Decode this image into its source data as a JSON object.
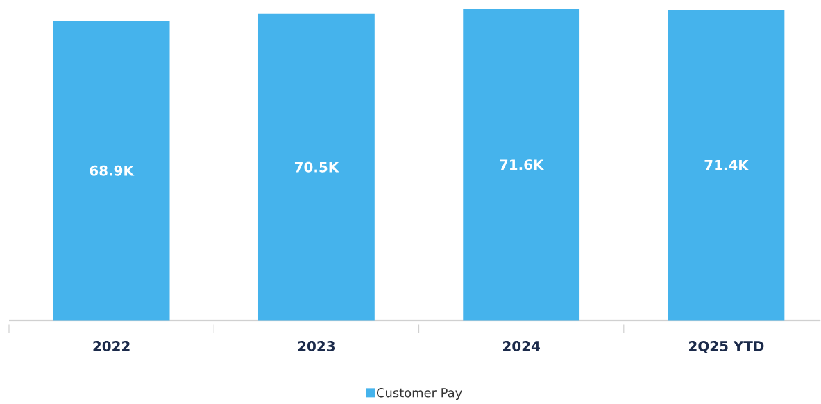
{
  "chart_data": {
    "type": "bar",
    "categories": [
      "2022",
      "2023",
      "2024",
      "2Q25 YTD"
    ],
    "series": [
      {
        "name": "Customer Pay",
        "color": "#45b3ec",
        "values": [
          68.9,
          70.5,
          71.6,
          71.4
        ],
        "value_labels": [
          "68.9K",
          "70.5K",
          "71.6K",
          "71.4K"
        ]
      }
    ],
    "legend": "bottom"
  }
}
